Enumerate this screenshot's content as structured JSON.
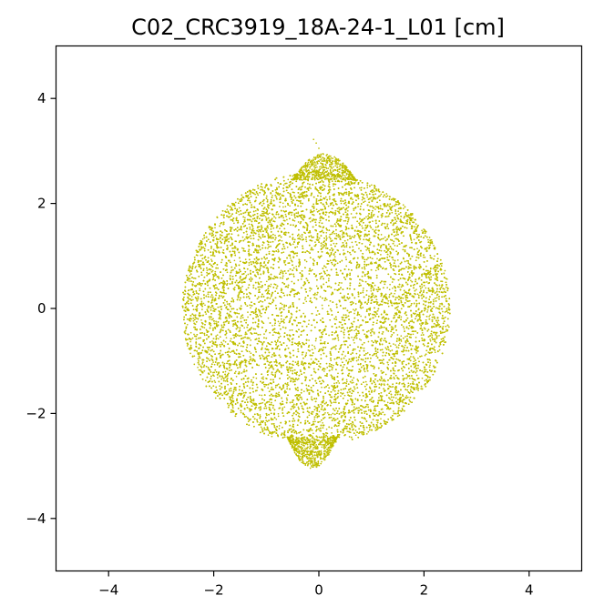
{
  "chart_data": {
    "type": "scatter",
    "title": "C02_CRC3919_18A-24-1_L01 [cm]",
    "xlabel": "",
    "ylabel": "",
    "xlim": [
      -5,
      5
    ],
    "ylim": [
      -5,
      5
    ],
    "aspect": "equal",
    "grid": false,
    "legend": "none",
    "x_ticks": [
      -4,
      -2,
      0,
      2,
      4
    ],
    "y_ticks": [
      -4,
      -2,
      0,
      2,
      4
    ],
    "x_tick_labels": [
      "−4",
      "−2",
      "0",
      "2",
      "4"
    ],
    "y_tick_labels": [
      "−4",
      "−2",
      "0",
      "2",
      "4"
    ],
    "point_color": "#bfbf00",
    "series": [
      {
        "point_count_approx": 20000,
        "shape": "dense point cloud filling a roughly circular region",
        "x_range": [
          -2.65,
          2.5
        ],
        "y_range": [
          -3.05,
          3.25
        ],
        "center_approx": [
          -0.05,
          0.0
        ],
        "body": {
          "center": [
            -0.05,
            0.0
          ],
          "radius_x": 2.55,
          "radius_y": 2.6
        },
        "top_protrusion": {
          "center": [
            0.2,
            2.75
          ],
          "x_range": [
            -0.5,
            0.7
          ],
          "y_max": 2.95
        },
        "bottom_protrusion": {
          "center": [
            -0.15,
            -2.75
          ],
          "x_range": [
            -0.6,
            0.35
          ],
          "y_min": -3.05
        },
        "outlier_points": [
          [
            -0.1,
            3.22
          ],
          [
            -0.05,
            3.15
          ],
          [
            0.0,
            3.05
          ]
        ]
      }
    ]
  }
}
